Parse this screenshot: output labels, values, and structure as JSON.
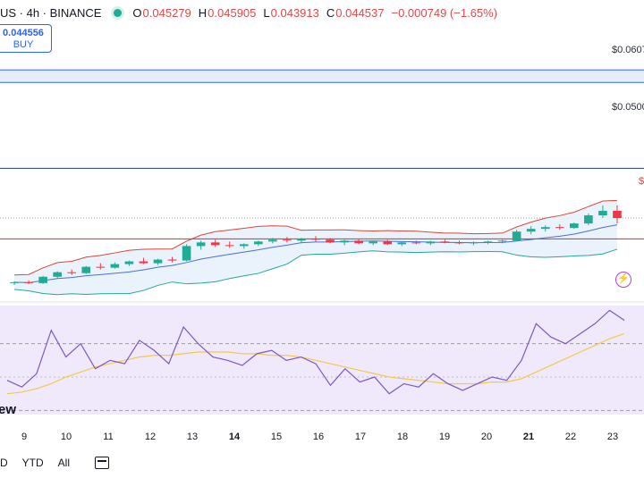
{
  "header": {
    "symbol": "US · 4h · BINANCE",
    "open_label": "O",
    "open": "0.045279",
    "high_label": "H",
    "high": "0.045905",
    "low_label": "L",
    "low": "0.043913",
    "close_label": "C",
    "close": "0.044537",
    "change": "−0.000749 (−1.65%)"
  },
  "buy_box": {
    "price": "0.044556",
    "label": "BUY"
  },
  "price_labels": {
    "level_1": "$0.0607",
    "level_2": "$0.0500",
    "level_3": "$"
  },
  "time_axis": [
    {
      "label": "9",
      "bold": false
    },
    {
      "label": "10",
      "bold": false
    },
    {
      "label": "11",
      "bold": false
    },
    {
      "label": "12",
      "bold": false
    },
    {
      "label": "13",
      "bold": false
    },
    {
      "label": "14",
      "bold": true
    },
    {
      "label": "15",
      "bold": false
    },
    {
      "label": "16",
      "bold": false
    },
    {
      "label": "17",
      "bold": false
    },
    {
      "label": "18",
      "bold": false
    },
    {
      "label": "19",
      "bold": false
    },
    {
      "label": "20",
      "bold": false
    },
    {
      "label": "21",
      "bold": true
    },
    {
      "label": "22",
      "bold": false
    },
    {
      "label": "23",
      "bold": false
    }
  ],
  "bottom_bar": {
    "range_1": "D",
    "range_ytd": "YTD",
    "range_all": "All"
  },
  "watermark": "ew",
  "colors": {
    "up": "#22ab94",
    "down": "#f23645",
    "band": "#d9483b",
    "band_lower": "#26a69a",
    "ma": "#4a6fd6",
    "rsi": "#7e57c2",
    "rsi_ma": "#f2c94c",
    "rsi_bg": "#efe9fb",
    "accent": "#2962ff"
  },
  "chart_data": {
    "type": "candlestick",
    "ohlc": [
      [
        0.0373,
        0.0375,
        0.0371,
        0.0374
      ],
      [
        0.0374,
        0.0376,
        0.0372,
        0.0373
      ],
      [
        0.0373,
        0.0381,
        0.0372,
        0.038
      ],
      [
        0.038,
        0.0386,
        0.0378,
        0.0385
      ],
      [
        0.0385,
        0.0388,
        0.0382,
        0.0384
      ],
      [
        0.0384,
        0.0392,
        0.0383,
        0.0391
      ],
      [
        0.0391,
        0.0395,
        0.0388,
        0.039
      ],
      [
        0.039,
        0.0396,
        0.0389,
        0.0394
      ],
      [
        0.0394,
        0.0398,
        0.0392,
        0.0397
      ],
      [
        0.0397,
        0.0401,
        0.0394,
        0.0395
      ],
      [
        0.0395,
        0.04,
        0.0393,
        0.0399
      ],
      [
        0.0399,
        0.0402,
        0.0396,
        0.0398
      ],
      [
        0.0398,
        0.0416,
        0.0397,
        0.0414
      ],
      [
        0.0414,
        0.042,
        0.041,
        0.0418
      ],
      [
        0.0418,
        0.0421,
        0.0413,
        0.0415
      ],
      [
        0.0415,
        0.0419,
        0.0412,
        0.0414
      ],
      [
        0.0414,
        0.0417,
        0.0411,
        0.0416
      ],
      [
        0.0416,
        0.042,
        0.0414,
        0.0419
      ],
      [
        0.0419,
        0.0423,
        0.0417,
        0.0421
      ],
      [
        0.0421,
        0.0424,
        0.0418,
        0.042
      ],
      [
        0.042,
        0.0423,
        0.0417,
        0.0422
      ],
      [
        0.0422,
        0.0425,
        0.0419,
        0.0421
      ],
      [
        0.0421,
        0.0423,
        0.0417,
        0.0418
      ],
      [
        0.0418,
        0.0421,
        0.0415,
        0.042
      ],
      [
        0.042,
        0.0422,
        0.0416,
        0.0417
      ],
      [
        0.0417,
        0.042,
        0.0415,
        0.0419
      ],
      [
        0.0419,
        0.0421,
        0.0415,
        0.0416
      ],
      [
        0.0416,
        0.0419,
        0.0414,
        0.0418
      ],
      [
        0.0418,
        0.042,
        0.0416,
        0.0417
      ],
      [
        0.0417,
        0.042,
        0.0415,
        0.0419
      ],
      [
        0.0419,
        0.0421,
        0.0417,
        0.0418
      ],
      [
        0.0418,
        0.042,
        0.0416,
        0.0417
      ],
      [
        0.0417,
        0.0419,
        0.0415,
        0.0418
      ],
      [
        0.0418,
        0.042,
        0.0416,
        0.0419
      ],
      [
        0.0419,
        0.0421,
        0.0417,
        0.042
      ],
      [
        0.042,
        0.0432,
        0.0419,
        0.043
      ],
      [
        0.043,
        0.0436,
        0.0427,
        0.0433
      ],
      [
        0.0433,
        0.0437,
        0.043,
        0.0435
      ],
      [
        0.0435,
        0.0438,
        0.0432,
        0.0434
      ],
      [
        0.0434,
        0.044,
        0.0433,
        0.0439
      ],
      [
        0.0439,
        0.045,
        0.0437,
        0.0448
      ],
      [
        0.0448,
        0.0459,
        0.0445,
        0.0453
      ],
      [
        0.0453,
        0.0459,
        0.0439,
        0.0445
      ]
    ],
    "x_range": [
      0,
      42
    ],
    "y_scale_hint": "price",
    "horizontal_levels": [
      0.0607,
      0.05
    ],
    "rsi": [
      48,
      44,
      52,
      78,
      62,
      70,
      55,
      60,
      58,
      72,
      66,
      58,
      80,
      70,
      62,
      60,
      57,
      64,
      66,
      60,
      62,
      58,
      45,
      55,
      47,
      50,
      40,
      46,
      44,
      52,
      46,
      42,
      46,
      50,
      48,
      60,
      82,
      74,
      70,
      76,
      82,
      90,
      84
    ],
    "rsi_ma": [
      40,
      41,
      43,
      46,
      50,
      53,
      56,
      58,
      60,
      62,
      63,
      63,
      64,
      65,
      65,
      65,
      64,
      64,
      63,
      63,
      62,
      60,
      58,
      56,
      54,
      52,
      50,
      49,
      48,
      47,
      46,
      46,
      46,
      47,
      47,
      49,
      53,
      57,
      61,
      65,
      69,
      73,
      76
    ]
  }
}
